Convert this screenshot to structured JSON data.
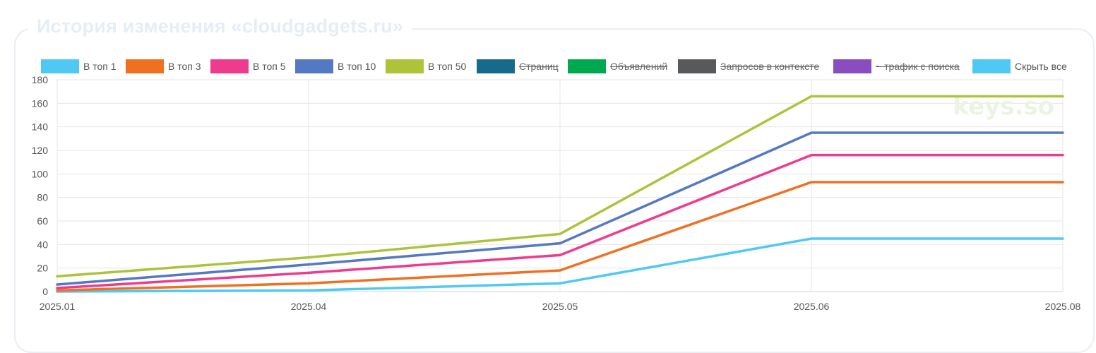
{
  "card": {
    "title": "История изменения «cloudgadgets.ru»"
  },
  "watermark": "keys.so",
  "legend": [
    {
      "label": "В топ 1",
      "color": "#4fc9f4",
      "hidden": false
    },
    {
      "label": "В топ 3",
      "color": "#f07022",
      "hidden": false
    },
    {
      "label": "В топ 5",
      "color": "#ef3b8e",
      "hidden": false
    },
    {
      "label": "В топ 10",
      "color": "#5478c2",
      "hidden": false
    },
    {
      "label": "В топ 50",
      "color": "#acc33a",
      "hidden": false
    },
    {
      "label": "Страниц",
      "color": "#176a8c",
      "hidden": true
    },
    {
      "label": "Объявлений",
      "color": "#00a94f",
      "hidden": true
    },
    {
      "label": "Запросов в контексте",
      "color": "#58595b",
      "hidden": true
    },
    {
      "label": "~ трафик с поиска",
      "color": "#8a4dbf",
      "hidden": true
    },
    {
      "label": "Скрыть все",
      "color": "#4fc9f4",
      "hidden": false
    }
  ],
  "chart_data": {
    "type": "line",
    "title": "История изменения «cloudgadgets.ru»",
    "xlabel": "",
    "ylabel": "",
    "categories": [
      "2025.01",
      "2025.04",
      "2025.05",
      "2025.06",
      "2025.08"
    ],
    "ylim": [
      0,
      180
    ],
    "yticks": [
      0,
      20,
      40,
      60,
      80,
      100,
      120,
      140,
      160,
      180
    ],
    "grid": true,
    "legend_position": "top",
    "series": [
      {
        "name": "В топ 1",
        "color": "#4fc9f4",
        "values": [
          0,
          1,
          7,
          45,
          45
        ]
      },
      {
        "name": "В топ 3",
        "color": "#f07022",
        "values": [
          1,
          7,
          18,
          93,
          93
        ]
      },
      {
        "name": "В топ 5",
        "color": "#ef3b8e",
        "values": [
          3,
          16,
          31,
          116,
          116
        ]
      },
      {
        "name": "В топ 10",
        "color": "#5478c2",
        "values": [
          6,
          23,
          41,
          135,
          135
        ]
      },
      {
        "name": "В топ 50",
        "color": "#acc33a",
        "values": [
          13,
          29,
          49,
          166,
          166
        ]
      }
    ]
  }
}
